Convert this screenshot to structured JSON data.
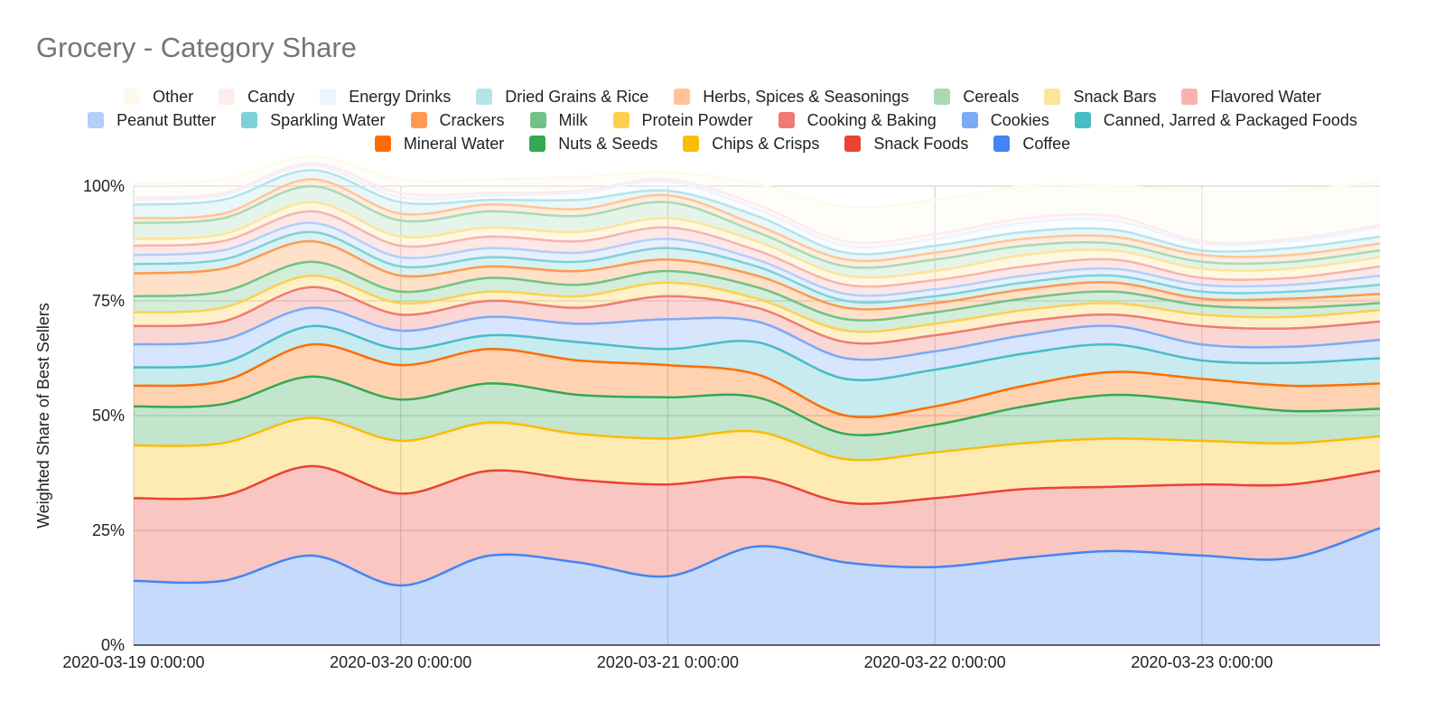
{
  "chart_data": {
    "type": "area",
    "stacked": true,
    "percent": true,
    "title": "Grocery - Category Share",
    "ylabel": "Weighted Share of Best Sellers",
    "xlabel": "",
    "ylim": [
      0,
      100
    ],
    "y_ticks": [
      "0%",
      "25%",
      "50%",
      "75%",
      "100%"
    ],
    "x_tick_labels": [
      "2020-03-19 0:00:00",
      "2020-03-20 0:00:00",
      "2020-03-21 0:00:00",
      "2020-03-22 0:00:00",
      "2020-03-23 0:00:00"
    ],
    "x": [
      "2020-03-19 00:00",
      "2020-03-19 08:00",
      "2020-03-19 16:00",
      "2020-03-20 00:00",
      "2020-03-20 08:00",
      "2020-03-20 16:00",
      "2020-03-21 00:00",
      "2020-03-21 08:00",
      "2020-03-21 16:00",
      "2020-03-22 00:00",
      "2020-03-22 08:00",
      "2020-03-22 16:00",
      "2020-03-23 00:00",
      "2020-03-23 08:00",
      "2020-03-23 16:00"
    ],
    "grid": true,
    "legend_position": "top",
    "legend_order": [
      "Other",
      "Candy",
      "Energy Drinks",
      "Dried Grains & Rice",
      "Herbs, Spices & Seasonings",
      "Cereals",
      "Snack Bars",
      "Flavored Water",
      "Peanut Butter",
      "Sparkling Water",
      "Crackers",
      "Milk",
      "Protein Powder",
      "Cooking & Baking",
      "Cookies",
      "Canned, Jarred & Packaged Foods",
      "Mineral Water",
      "Nuts & Seeds",
      "Chips & Crisps",
      "Snack Foods",
      "Coffee"
    ],
    "series": [
      {
        "name": "Coffee",
        "color": "#4285f4",
        "values": [
          14,
          14,
          19.5,
          13,
          19.5,
          18,
          15,
          21.5,
          18,
          17,
          19,
          20.5,
          19.5,
          19,
          25.5
        ]
      },
      {
        "name": "Snack Foods",
        "color": "#ea4335",
        "values": [
          18,
          18.5,
          19.5,
          20,
          18.5,
          18,
          20,
          15,
          13,
          15,
          15,
          14,
          15.5,
          16,
          12.5
        ]
      },
      {
        "name": "Chips & Crisps",
        "color": "#fbbc04",
        "values": [
          11.5,
          11.5,
          10.5,
          11.5,
          10.5,
          10,
          10,
          10,
          9.5,
          10,
          10,
          10.5,
          9.5,
          9,
          7.5
        ]
      },
      {
        "name": "Nuts & Seeds",
        "color": "#34a853",
        "values": [
          8.5,
          8.5,
          9,
          9,
          8.5,
          8.5,
          9,
          7.5,
          5.5,
          6,
          8,
          9.5,
          8.5,
          7,
          6
        ]
      },
      {
        "name": "Mineral Water",
        "color": "#ff6d01",
        "values": [
          4.5,
          5,
          7,
          7.5,
          7.5,
          7.5,
          7,
          5,
          4,
          4,
          4.5,
          5,
          5,
          5.5,
          5.5
        ]
      },
      {
        "name": "Canned, Jarred & Packaged Foods",
        "color": "#46bdc6",
        "values": [
          4,
          4,
          4,
          3.5,
          3,
          4,
          3.5,
          7,
          8,
          8,
          7,
          6,
          4,
          5,
          5.5
        ]
      },
      {
        "name": "Cookies",
        "color": "#7baaf7",
        "values": [
          5,
          5,
          4,
          4,
          4,
          4,
          6.5,
          4.5,
          4.5,
          4,
          4,
          4,
          3.5,
          3.5,
          4
        ]
      },
      {
        "name": "Cooking & Baking",
        "color": "#f07b72",
        "values": [
          4,
          4,
          4.5,
          3.5,
          3.5,
          3.5,
          5,
          3,
          3.5,
          3.5,
          3,
          2.5,
          4,
          4,
          4
        ]
      },
      {
        "name": "Protein Powder",
        "color": "#fcd04f",
        "values": [
          3,
          3,
          2.5,
          2.5,
          2,
          2.5,
          3,
          2,
          2.5,
          2.5,
          2.5,
          2.5,
          2.5,
          2.5,
          2.5
        ]
      },
      {
        "name": "Milk",
        "color": "#71c287",
        "values": [
          3.5,
          3.5,
          3,
          2.5,
          3,
          2.5,
          2.5,
          2.5,
          2.5,
          2.5,
          2.5,
          2.5,
          2,
          2,
          1.5
        ]
      },
      {
        "name": "Crackers",
        "color": "#ff994d",
        "values": [
          5,
          5,
          4.5,
          3.5,
          2.5,
          3,
          2.5,
          2.5,
          2.5,
          2,
          2,
          2,
          1.5,
          2,
          2
        ]
      },
      {
        "name": "Sparkling Water",
        "color": "#7ed1d7",
        "values": [
          2,
          2,
          2,
          2,
          2,
          2,
          2.5,
          2,
          1.5,
          1.5,
          1.5,
          1.5,
          1.5,
          1.5,
          2
        ]
      },
      {
        "name": "Peanut Butter",
        "color": "#b3cefb",
        "values": [
          2,
          2,
          2,
          2,
          2,
          2,
          2,
          1.5,
          1.5,
          1.5,
          1.5,
          1.5,
          1.5,
          1.5,
          2
        ]
      },
      {
        "name": "Flavored Water",
        "color": "#f7b4ae",
        "values": [
          2,
          2,
          2.5,
          2.5,
          2.5,
          2.5,
          2.5,
          2,
          2,
          2,
          2,
          2,
          1.5,
          1.5,
          2
        ]
      },
      {
        "name": "Snack Bars",
        "color": "#fde49b",
        "values": [
          1.5,
          1.5,
          2,
          2,
          2,
          2,
          2,
          2,
          2,
          2,
          2.5,
          2,
          2,
          2,
          2
        ]
      },
      {
        "name": "Cereals",
        "color": "#a8dab5",
        "values": [
          3.5,
          3.5,
          3.5,
          3.5,
          3.5,
          3.5,
          3.5,
          2,
          2,
          2.5,
          2,
          1.5,
          1.5,
          1.5,
          1.5
        ]
      },
      {
        "name": "Herbs, Spices & Seasonings",
        "color": "#ffc599",
        "values": [
          1,
          1,
          1.5,
          1.5,
          1.5,
          1.5,
          1.5,
          1.5,
          1.5,
          1.5,
          1.5,
          1.5,
          1.5,
          1.5,
          1.5
        ]
      },
      {
        "name": "Dried Grains & Rice",
        "color": "#b6e3e9",
        "values": [
          3,
          3,
          2,
          2.5,
          1,
          2,
          1,
          2,
          1.5,
          1.5,
          1.5,
          1.5,
          1,
          1.5,
          1.5
        ]
      },
      {
        "name": "Energy Drinks",
        "color": "#eef4fe",
        "values": [
          1,
          1,
          1,
          1,
          1,
          1.5,
          2,
          1.5,
          1.5,
          1.5,
          2,
          2,
          1.5,
          1.5,
          2
        ]
      },
      {
        "name": "Candy",
        "color": "#fdeceb",
        "values": [
          0.5,
          0.5,
          0.5,
          1,
          0.5,
          0.5,
          0.5,
          1,
          1,
          1,
          1,
          1,
          0.5,
          0.5,
          0.5
        ]
      },
      {
        "name": "Other",
        "color": "#fefaeb",
        "values": [
          3,
          3,
          1.5,
          3,
          3,
          3,
          1.5,
          4.5,
          7.5,
          7.5,
          7,
          6.5,
          11,
          10.5,
          9.5
        ]
      }
    ]
  }
}
